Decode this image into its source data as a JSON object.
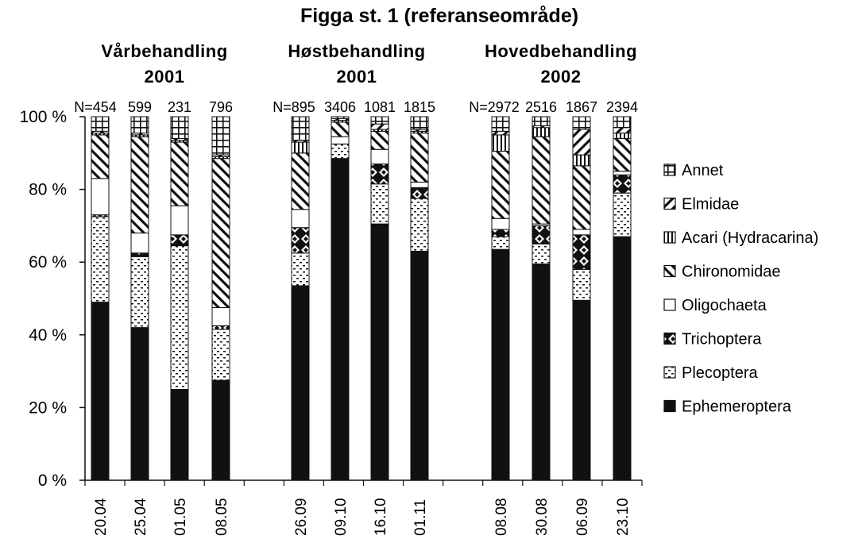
{
  "chart_data": {
    "type": "bar",
    "stacked": true,
    "title": "Figga st. 1 (referanseområde)",
    "groups": [
      {
        "label_line1": "Vårbehandling",
        "label_line2": "2001"
      },
      {
        "label_line1": "Høstbehandling",
        "label_line2": "2001"
      },
      {
        "label_line1": "Hovedbehandling",
        "label_line2": "2002"
      }
    ],
    "categories": [
      "20.04",
      "25.04",
      "01.05",
      "08.05",
      "26.09",
      "09.10",
      "16.10",
      "01.11",
      "08.08",
      "30.08",
      "06.09",
      "23.10"
    ],
    "category_group": [
      0,
      0,
      0,
      0,
      1,
      1,
      1,
      1,
      2,
      2,
      2,
      2
    ],
    "n_labels": [
      "N=454",
      "599",
      "231",
      "796",
      "N=895",
      "3406",
      "1081",
      "1815",
      "N=2972",
      "2516",
      "1867",
      "2394"
    ],
    "y_ticks": [
      "0 %",
      "20 %",
      "40 %",
      "60 %",
      "80 %",
      "100 %"
    ],
    "ylim": [
      0,
      100
    ],
    "series": [
      {
        "name": "Ephemeroptera",
        "pattern": "solid",
        "values": [
          49,
          42,
          25,
          27.5,
          53.5,
          88.5,
          70.5,
          63,
          63.5,
          59.5,
          49.5,
          67
        ]
      },
      {
        "name": "Plecoptera",
        "pattern": "dots",
        "values": [
          23.5,
          19.5,
          39.5,
          14,
          9,
          4,
          11,
          14.5,
          3.5,
          5.5,
          8.5,
          12
        ]
      },
      {
        "name": "Trichoptera",
        "pattern": "diamond",
        "values": [
          0.5,
          1,
          3,
          1,
          7,
          0,
          5.5,
          3,
          2,
          5,
          9.5,
          5
        ]
      },
      {
        "name": "Oligochaeta",
        "pattern": "white",
        "values": [
          10,
          5.5,
          8,
          5,
          5,
          2,
          4,
          1.5,
          3,
          0.5,
          1.5,
          1
        ]
      },
      {
        "name": "Chironomidae",
        "pattern": "diag",
        "values": [
          12,
          26.5,
          17.5,
          41,
          15.5,
          4,
          5,
          13.5,
          18.5,
          24,
          17.5,
          9
        ]
      },
      {
        "name": "Acari (Hydracarina)",
        "pattern": "vlines",
        "values": [
          0.5,
          0.5,
          0.5,
          0.5,
          3,
          0.5,
          0.5,
          0.5,
          4.5,
          2.5,
          3,
          1.5
        ]
      },
      {
        "name": "Elmidae",
        "pattern": "backdiag",
        "values": [
          0.5,
          0.5,
          0.5,
          0.5,
          0.5,
          0.5,
          1.5,
          0.5,
          1,
          0.5,
          7,
          1.5
        ]
      },
      {
        "name": "Annet",
        "pattern": "grid",
        "values": [
          4,
          4.5,
          6,
          10.5,
          6.5,
          0.5,
          2,
          3.5,
          4,
          2.5,
          3.5,
          3
        ]
      }
    ],
    "legend_order": [
      "Annet",
      "Elmidae",
      "Acari (Hydracarina)",
      "Chironomidae",
      "Oligochaeta",
      "Trichoptera",
      "Plecoptera",
      "Ephemeroptera"
    ],
    "legend_position": "right",
    "grid": false,
    "colors": {
      "ink": "#111111",
      "background": "#ffffff"
    }
  }
}
